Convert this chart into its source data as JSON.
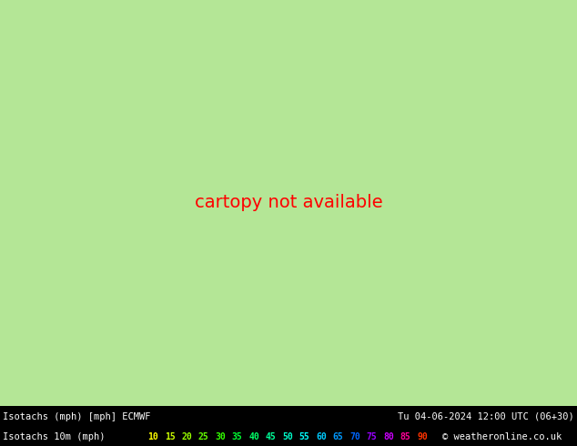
{
  "title_line1": "Isotachs (mph) [mph] ECMWF",
  "title_line2": "Tu 04-06-2024 12:00 UTC (06+30)",
  "subtitle": "Isotachs 10m (mph)",
  "credit": "© weatheronline.co.uk",
  "map_bg": "#b4e696",
  "sea_color": "#d8d8d8",
  "border_color": "#1a1a1a",
  "border_lw": 1.3,
  "contour_yellow": "#ffd700",
  "contour_orange": "#ffa500",
  "figsize": [
    6.34,
    4.9
  ],
  "dpi": 100,
  "lon_min": 8.5,
  "lon_max": 47.0,
  "lat_min": 42.5,
  "lat_max": 60.0,
  "legend_values": [
    "10",
    "15",
    "20",
    "25",
    "30",
    "35",
    "40",
    "45",
    "50",
    "55",
    "60",
    "65",
    "70",
    "75",
    "80",
    "85",
    "90"
  ],
  "legend_colors": [
    "#ffff00",
    "#ccff00",
    "#99ff00",
    "#66ff00",
    "#33ff00",
    "#00ff33",
    "#00ff66",
    "#00ff99",
    "#00ffcc",
    "#00ffff",
    "#00ccff",
    "#0099ff",
    "#0066ff",
    "#9900ff",
    "#cc00ff",
    "#ff0099",
    "#ff3300"
  ]
}
